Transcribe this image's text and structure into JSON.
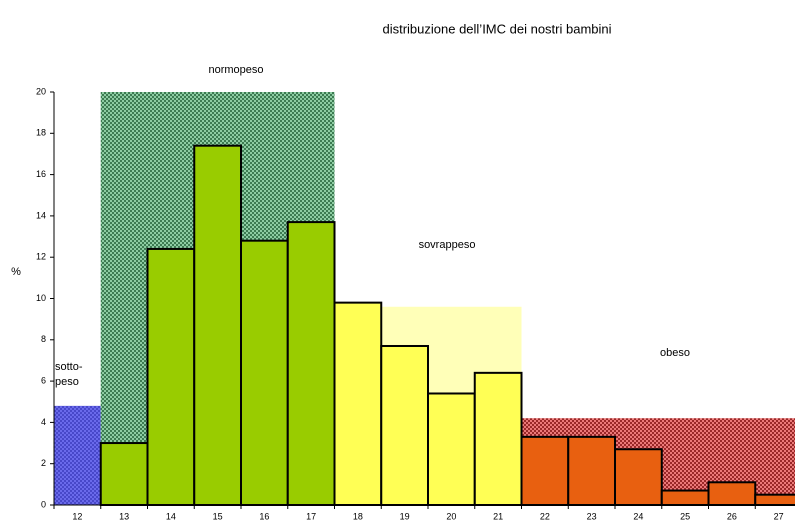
{
  "chart_data": {
    "type": "bar",
    "title": "distribuzione dell’IMC dei nostri bambini",
    "y_label": "%",
    "x": [
      12,
      13,
      14,
      15,
      16,
      17,
      18,
      19,
      20,
      21,
      22,
      23,
      24,
      25,
      26,
      27
    ],
    "values": [
      null,
      3.0,
      12.4,
      17.4,
      12.8,
      13.7,
      9.8,
      7.7,
      5.4,
      6.4,
      3.3,
      3.3,
      2.7,
      0.7,
      1.1,
      0.5
    ],
    "xlim": [
      11.5,
      27.35
    ],
    "xticks": [
      12,
      13,
      14,
      15,
      16,
      17,
      18,
      19,
      20,
      21,
      22,
      23,
      24,
      25,
      26,
      27
    ],
    "ylim": [
      0,
      20
    ],
    "yticks": [
      0,
      2,
      4,
      6,
      8,
      10,
      12,
      14,
      16,
      18,
      20
    ],
    "zones": [
      {
        "label": [
          "sotto-",
          "peso"
        ],
        "from": 12,
        "to": 12,
        "height": 4.8,
        "color": "#5050e8",
        "bar_color": "#5050e8"
      },
      {
        "label": [
          "normopeso"
        ],
        "from": 13,
        "to": 17,
        "height": 20,
        "color": "#50b070",
        "bar_color": "#99cc00"
      },
      {
        "label": [
          "sovrappeso"
        ],
        "from": 18,
        "to": 21,
        "height": 9.6,
        "color": "#ffffb8",
        "bar_color": "#ffff55"
      },
      {
        "label": [
          "obeso"
        ],
        "from": 22,
        "to": 27,
        "height": 4.2,
        "color": "#e03030",
        "bar_color": "#e86010"
      }
    ]
  }
}
